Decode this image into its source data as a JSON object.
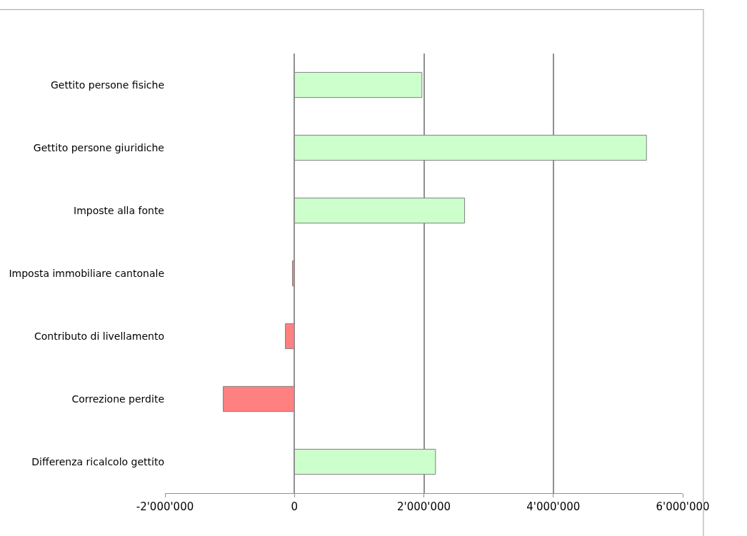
{
  "chart_data": {
    "type": "bar",
    "orientation": "horizontal",
    "categories": [
      "Gettito persone fisiche",
      "Gettito persone giuridiche",
      "Imposte alla fonte",
      "Imposta immobiliare cantonale",
      "Contributo di livellamento",
      "Correzione perdite",
      "Differenza ricalcolo gettito"
    ],
    "values": [
      1970000,
      5440000,
      2630000,
      -30000,
      -140000,
      -1100000,
      2180000
    ],
    "colors": [
      "#ccffcc",
      "#ccffcc",
      "#ccffcc",
      "#ff8080",
      "#ff8080",
      "#ff8080",
      "#ccffcc"
    ],
    "xlim": [
      -2000000,
      6000000
    ],
    "xticks": [
      {
        "value": -2000000,
        "label": "-2'000'000"
      },
      0,
      {
        "value": 2000000,
        "label": "2'000'000"
      },
      {
        "value": 4000000,
        "label": "4'000'000"
      },
      {
        "value": 6000000,
        "label": "6'000'000"
      }
    ],
    "grid": "x",
    "legend": false
  }
}
